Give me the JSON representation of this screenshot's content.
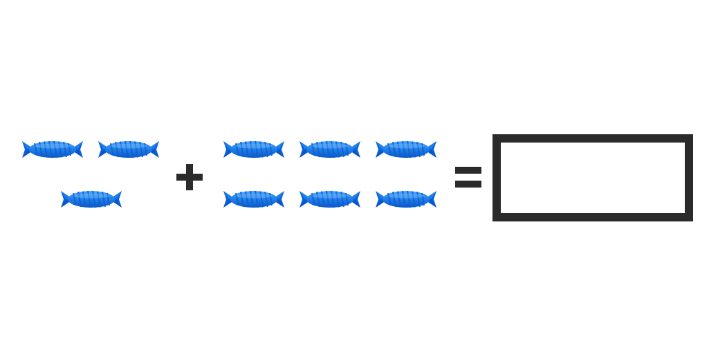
{
  "problem": {
    "left_group": {
      "count": 3,
      "item_icon": "blue-wrapped-candy-icon"
    },
    "operator": "+",
    "right_group": {
      "count": 6,
      "item_icon": "blue-wrapped-candy-icon"
    },
    "equals": "=",
    "answer": ""
  },
  "colors": {
    "candy_light": "#2f8ef2",
    "candy_dark": "#0a56c8",
    "candy_stripe": "#1466d6",
    "symbol": "#2b2b2b",
    "background": "#ffffff"
  }
}
